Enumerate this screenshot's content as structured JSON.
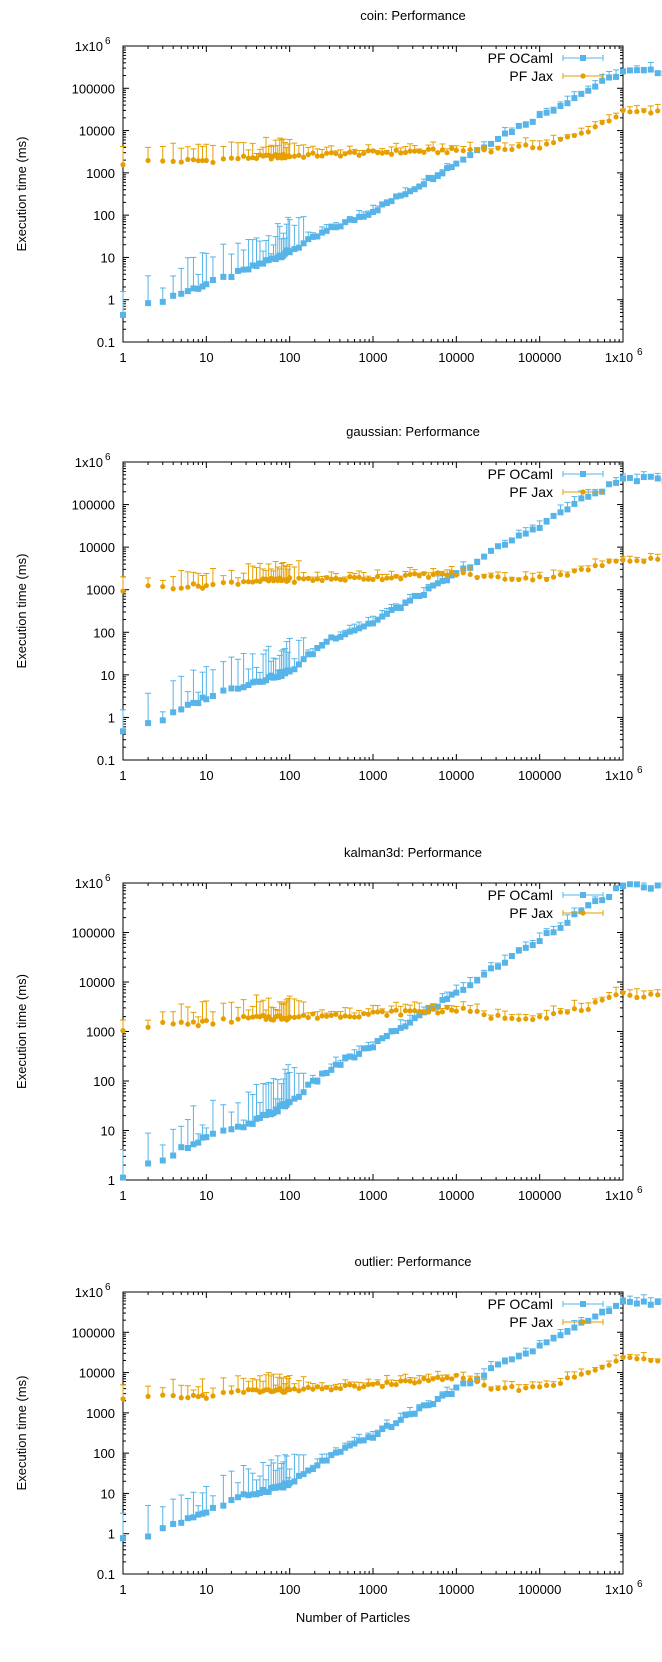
{
  "colors": {
    "ocaml": "#56b4e9",
    "jax": "#e69f00",
    "axis": "#000000"
  },
  "shared": {
    "xlabel": "Number of Particles",
    "ylabel": "Execution time (ms)",
    "x_ticks": [
      "1",
      "10",
      "100",
      "1000",
      "10000",
      "100000",
      "1x10"
    ],
    "y_tick_labels": [
      "0.1",
      "1",
      "10",
      "100",
      "1000",
      "10000",
      "100000",
      "1x10"
    ],
    "exp_text": "6"
  },
  "chart_data": [
    {
      "type": "scatter",
      "title": "coin: Performance",
      "xlabel": "",
      "ylabel": "Execution time (ms)",
      "x_scale": "log",
      "y_scale": "log",
      "xlim": [
        1,
        1000000
      ],
      "ylim": [
        0.1,
        1000000
      ],
      "legend_position": "top-right",
      "series": [
        {
          "name": "PF OCaml",
          "marker": "square",
          "anchors": [
            [
              1,
              0.5
            ],
            [
              2,
              0.75
            ],
            [
              3,
              1.0
            ],
            [
              10,
              2.3
            ],
            [
              30,
              5
            ],
            [
              100,
              14
            ],
            [
              300,
              45
            ],
            [
              1000,
              125
            ],
            [
              3000,
              420
            ],
            [
              10000,
              1700
            ],
            [
              30000,
              6500
            ],
            [
              100000,
              22000
            ],
            [
              300000,
              70000
            ],
            [
              1000000,
              250000
            ]
          ]
        },
        {
          "name": "PF Jax",
          "marker": "circle",
          "anchors": [
            [
              1,
              1700
            ],
            [
              2,
              1850
            ],
            [
              10,
              1950
            ],
            [
              30,
              2300
            ],
            [
              100,
              2500
            ],
            [
              1000,
              3000
            ],
            [
              10000,
              3400
            ],
            [
              30000,
              3600
            ],
            [
              100000,
              4300
            ],
            [
              300000,
              8000
            ],
            [
              1000000,
              27000
            ]
          ]
        }
      ]
    },
    {
      "type": "scatter",
      "title": "gaussian: Performance",
      "xlabel": "",
      "ylabel": "Execution time (ms)",
      "x_scale": "log",
      "y_scale": "log",
      "xlim": [
        1,
        1000000
      ],
      "ylim": [
        0.1,
        1000000
      ],
      "legend_position": "top-right",
      "series": [
        {
          "name": "PF OCaml",
          "marker": "square",
          "anchors": [
            [
              1,
              0.5
            ],
            [
              2,
              0.75
            ],
            [
              3,
              0.9
            ],
            [
              10,
              3.0
            ],
            [
              30,
              6
            ],
            [
              100,
              12
            ],
            [
              300,
              70
            ],
            [
              1000,
              170
            ],
            [
              3000,
              600
            ],
            [
              10000,
              2300
            ],
            [
              30000,
              9000
            ],
            [
              100000,
              32000
            ],
            [
              300000,
              120000
            ],
            [
              1000000,
              400000
            ]
          ]
        },
        {
          "name": "PF Jax",
          "marker": "circle",
          "anchors": [
            [
              1,
              1000
            ],
            [
              2,
              1150
            ],
            [
              10,
              1250
            ],
            [
              30,
              1600
            ],
            [
              100,
              1700
            ],
            [
              1000,
              1900
            ],
            [
              10000,
              2400
            ],
            [
              30000,
              1900
            ],
            [
              100000,
              1850
            ],
            [
              300000,
              2700
            ],
            [
              1000000,
              5200
            ]
          ]
        }
      ]
    },
    {
      "type": "scatter",
      "title": "kalman3d: Performance",
      "xlabel": "",
      "ylabel": "Execution time (ms)",
      "x_scale": "log",
      "y_scale": "log",
      "xlim": [
        1,
        1000000
      ],
      "ylim": [
        1,
        1000000
      ],
      "legend_position": "top-right",
      "series": [
        {
          "name": "PF OCaml",
          "marker": "square",
          "anchors": [
            [
              1,
              1.0
            ],
            [
              2,
              2.0
            ],
            [
              3,
              2.8
            ],
            [
              10,
              7.5
            ],
            [
              30,
              12
            ],
            [
              100,
              37
            ],
            [
              300,
              170
            ],
            [
              1000,
              520
            ],
            [
              3000,
              1700
            ],
            [
              10000,
              6000
            ],
            [
              30000,
              20000
            ],
            [
              100000,
              75000
            ],
            [
              300000,
              250000
            ],
            [
              1000000,
              850000
            ]
          ]
        },
        {
          "name": "PF Jax",
          "marker": "circle",
          "anchors": [
            [
              1,
              1150
            ],
            [
              2,
              1350
            ],
            [
              10,
              1500
            ],
            [
              30,
              1850
            ],
            [
              100,
              1950
            ],
            [
              1000,
              2300
            ],
            [
              10000,
              2800
            ],
            [
              30000,
              1950
            ],
            [
              100000,
              2000
            ],
            [
              300000,
              2700
            ],
            [
              1000000,
              5500
            ]
          ]
        }
      ]
    },
    {
      "type": "scatter",
      "title": "outlier: Performance",
      "xlabel": "Number of Particles",
      "ylabel": "Execution time (ms)",
      "x_scale": "log",
      "y_scale": "log",
      "xlim": [
        1,
        1000000
      ],
      "ylim": [
        0.1,
        1000000
      ],
      "legend_position": "top-right",
      "series": [
        {
          "name": "PF OCaml",
          "marker": "square",
          "anchors": [
            [
              1,
              0.7
            ],
            [
              2,
              0.9
            ],
            [
              3,
              1.4
            ],
            [
              10,
              3.5
            ],
            [
              30,
              9
            ],
            [
              100,
              17
            ],
            [
              300,
              80
            ],
            [
              1000,
              270
            ],
            [
              3000,
              1000
            ],
            [
              10000,
              3800
            ],
            [
              30000,
              14000
            ],
            [
              100000,
              45000
            ],
            [
              300000,
              150000
            ],
            [
              1000000,
              550000
            ]
          ]
        },
        {
          "name": "PF Jax",
          "marker": "circle",
          "anchors": [
            [
              1,
              2100
            ],
            [
              2,
              2400
            ],
            [
              10,
              2600
            ],
            [
              30,
              3500
            ],
            [
              100,
              3600
            ],
            [
              1000,
              4800
            ],
            [
              10000,
              7800
            ],
            [
              30000,
              3800
            ],
            [
              100000,
              4400
            ],
            [
              300000,
              8000
            ],
            [
              1000000,
              22000
            ]
          ]
        }
      ]
    }
  ]
}
